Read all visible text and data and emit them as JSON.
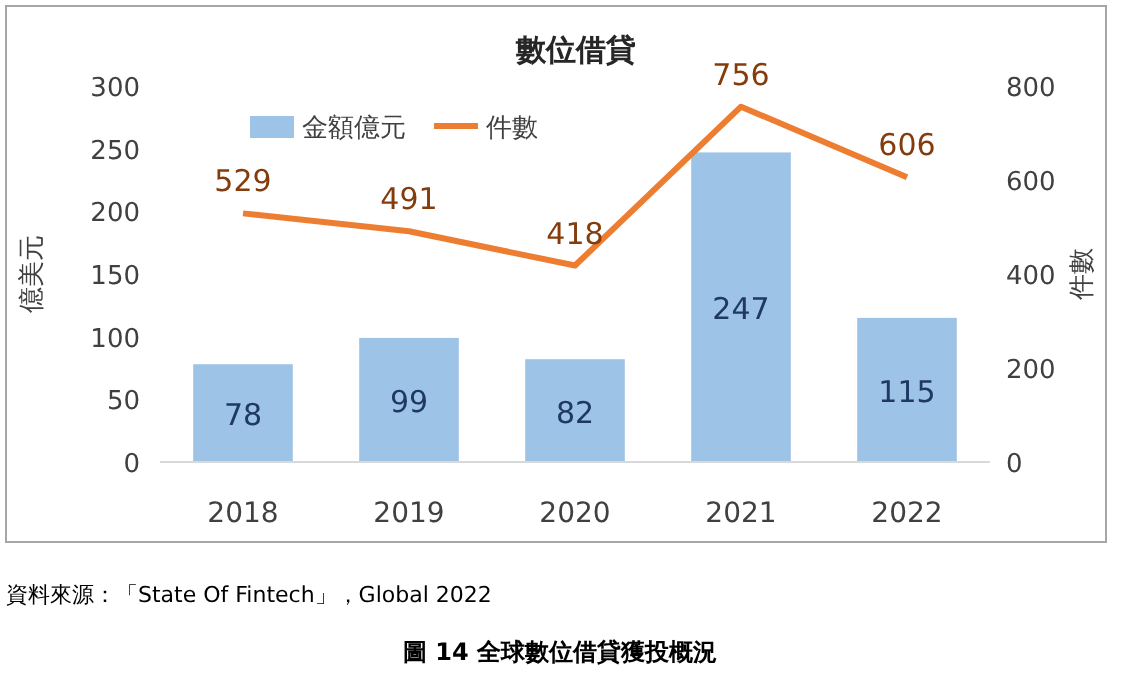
{
  "chart_data": {
    "type": "bar",
    "title": "數位借貸",
    "categories": [
      "2018",
      "2019",
      "2020",
      "2021",
      "2022"
    ],
    "series": [
      {
        "name": "金額億元",
        "color": "#9dc3e6",
        "values": [
          78,
          99,
          82,
          247,
          115
        ]
      },
      {
        "name": "件數",
        "type": "line",
        "axis": "y2",
        "color": "#ed7d31",
        "values": [
          529,
          491,
          418,
          756,
          606
        ]
      }
    ],
    "ylabel": "億美元",
    "y2label": "件數",
    "ylim": [
      0,
      300
    ],
    "yticks": [
      0,
      50,
      100,
      150,
      200,
      250,
      300
    ],
    "y2lim": [
      0,
      800
    ],
    "y2ticks": [
      0,
      200,
      400,
      600,
      800
    ],
    "data_labels": true,
    "legend": "top",
    "grid": false,
    "marker": "none",
    "annotations": [
      "資料來源：「State Of Fintech」，Global 2022",
      "圖 14 全球數位借貸獲投概況"
    ]
  }
}
